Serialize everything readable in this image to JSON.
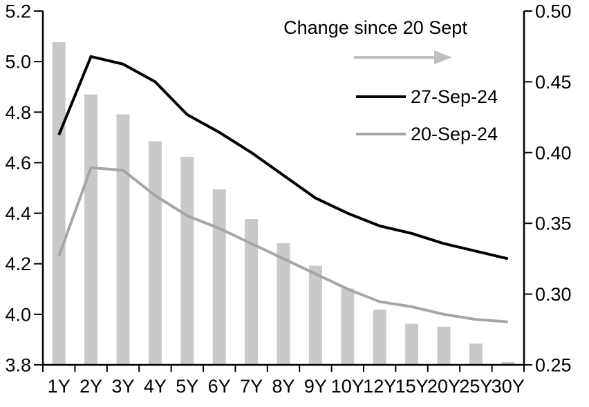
{
  "chart_data": {
    "type": "bar",
    "subtype": "bar-line-combo",
    "categories": [
      "1Y",
      "2Y",
      "3Y",
      "4Y",
      "5Y",
      "6Y",
      "7Y",
      "8Y",
      "9Y",
      "10Y",
      "12Y",
      "15Y",
      "20Y",
      "25Y",
      "30Y"
    ],
    "bars": {
      "name": "Change since 20 Sept",
      "axis": "right",
      "color": "#C9C9C9",
      "values": [
        0.478,
        0.441,
        0.427,
        0.408,
        0.397,
        0.374,
        0.353,
        0.336,
        0.32,
        0.304,
        0.289,
        0.279,
        0.277,
        0.265,
        0.252
      ]
    },
    "series": [
      {
        "name": "27-Sep-24",
        "axis": "left",
        "color": "#000000",
        "values": [
          4.71,
          5.02,
          4.99,
          4.92,
          4.79,
          4.72,
          4.64,
          4.55,
          4.46,
          4.4,
          4.35,
          4.32,
          4.28,
          4.25,
          4.22
        ]
      },
      {
        "name": "20-Sep-24",
        "axis": "left",
        "color": "#A6A6A6",
        "values": [
          4.23,
          4.58,
          4.57,
          4.47,
          4.39,
          4.34,
          4.28,
          4.22,
          4.16,
          4.1,
          4.05,
          4.03,
          4.0,
          3.98,
          3.97
        ]
      }
    ],
    "left_axis": {
      "min": 3.8,
      "max": 5.2,
      "ticks": [
        {
          "value": 5.2,
          "label": "5.2"
        },
        {
          "value": 5.0,
          "label": "5.0"
        },
        {
          "value": 4.8,
          "label": "4.8"
        },
        {
          "value": 4.6,
          "label": "4.6"
        },
        {
          "value": 4.4,
          "label": "4.4"
        },
        {
          "value": 4.2,
          "label": "4.2"
        },
        {
          "value": 4.0,
          "label": "4.0"
        },
        {
          "value": 3.8,
          "label": "3.8"
        }
      ]
    },
    "right_axis": {
      "min": 0.25,
      "max": 0.5,
      "ticks": [
        {
          "value": 0.5,
          "label": "0.50"
        },
        {
          "value": 0.45,
          "label": "0.45"
        },
        {
          "value": 0.4,
          "label": "0.40"
        },
        {
          "value": 0.35,
          "label": "0.35"
        },
        {
          "value": 0.3,
          "label": "0.30"
        },
        {
          "value": 0.25,
          "label": "0.25"
        }
      ]
    },
    "legend": {
      "title": "Change since 20 Sept",
      "arrow_color": "#C0C0C0",
      "position": "top-center-right",
      "entries": [
        "27-Sep-24",
        "20-Sep-24"
      ]
    },
    "grid": "off",
    "axis_color": "#000000"
  }
}
